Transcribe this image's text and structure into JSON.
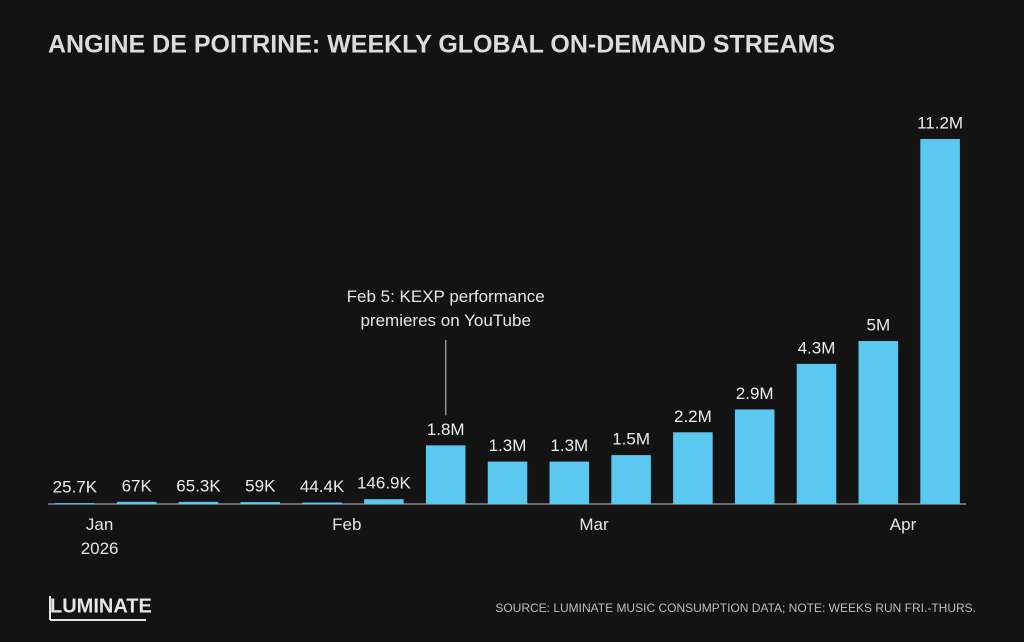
{
  "chart_data": {
    "type": "bar",
    "title": "ANGINE DE POITRINE: WEEKLY GLOBAL ON-DEMAND STREAMS",
    "categories": [
      "Jan\n2026",
      null,
      null,
      null,
      "Feb",
      null,
      null,
      null,
      "Mar",
      null,
      null,
      null,
      null,
      "Apr",
      null
    ],
    "values": [
      25700,
      67000,
      65300,
      59000,
      44400,
      146900,
      1800000,
      1300000,
      1300000,
      1500000,
      2200000,
      2900000,
      4300000,
      5000000,
      11200000
    ],
    "value_labels": [
      "25.7K",
      "67K",
      "65.3K",
      "59K",
      "44.4K",
      "146.9K",
      "1.8M",
      "1.3M",
      "1.3M",
      "1.5M",
      "2.2M",
      "2.9M",
      "4.3M",
      "5M",
      "11.2M"
    ],
    "color": "#5bc8ef",
    "ylim": [
      0,
      11200000
    ],
    "annotation": {
      "text": "Feb 5: KEXP performance\npremieres on YouTube",
      "index": 6
    },
    "source": "SOURCE: LUMINATE MUSIC CONSUMPTION DATA; NOTE: WEEKS RUN FRI.-THURS.",
    "logo": "LUMINATE"
  }
}
